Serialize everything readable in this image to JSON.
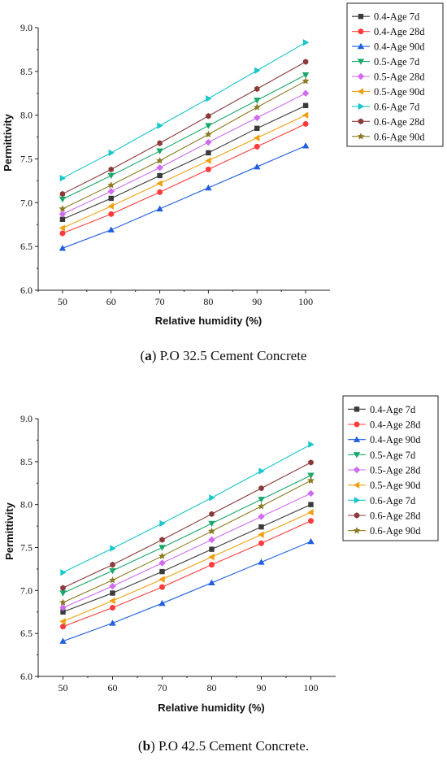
{
  "series_styles": [
    {
      "name": "0.4-Age 7d",
      "color": "#3a3a3a",
      "marker": "square"
    },
    {
      "name": "0.4-Age 28d",
      "color": "#ff3b3b",
      "marker": "circle"
    },
    {
      "name": "0.4-Age 90d",
      "color": "#1f5fe0",
      "marker": "triangle-up"
    },
    {
      "name": "0.5-Age 7d",
      "color": "#18a86a",
      "marker": "triangle-down"
    },
    {
      "name": "0.5-Age 28d",
      "color": "#d06bf0",
      "marker": "diamond"
    },
    {
      "name": "0.5-Age 90d",
      "color": "#f0a010",
      "marker": "triangle-left"
    },
    {
      "name": "0.6-Age 7d",
      "color": "#19c6cc",
      "marker": "triangle-right"
    },
    {
      "name": "0.6-Age 28d",
      "color": "#8b3a3a",
      "marker": "hexagon"
    },
    {
      "name": "0.6-Age 90d",
      "color": "#8a7a20",
      "marker": "star"
    }
  ],
  "chart_data": [
    {
      "type": "line",
      "xlabel": "Relative humidity (%)",
      "ylabel": "Permittivity",
      "xlim": [
        45,
        105
      ],
      "ylim": [
        6.0,
        9.0
      ],
      "x": [
        50,
        60,
        70,
        80,
        90,
        100
      ],
      "x_ticks": [
        "50",
        "60",
        "70",
        "80",
        "90",
        "100"
      ],
      "y_ticks": [
        "6.0",
        "6.5",
        "7.0",
        "7.5",
        "8.0",
        "8.5",
        "9.0"
      ],
      "legend_position": "top-right",
      "series": [
        {
          "name": "0.4-Age 7d",
          "values": [
            6.81,
            7.05,
            7.31,
            7.57,
            7.85,
            8.11
          ]
        },
        {
          "name": "0.4-Age 28d",
          "values": [
            6.65,
            6.87,
            7.12,
            7.38,
            7.64,
            7.9
          ]
        },
        {
          "name": "0.4-Age 90d",
          "values": [
            6.48,
            6.69,
            6.93,
            7.17,
            7.41,
            7.65
          ]
        },
        {
          "name": "0.5-Age 7d",
          "values": [
            7.04,
            7.31,
            7.59,
            7.88,
            8.17,
            8.46
          ]
        },
        {
          "name": "0.5-Age 28d",
          "values": [
            6.87,
            7.13,
            7.4,
            7.69,
            7.97,
            8.25
          ]
        },
        {
          "name": "0.5-Age 90d",
          "values": [
            6.71,
            6.96,
            7.22,
            7.48,
            7.74,
            8.0
          ]
        },
        {
          "name": "0.6-Age 7d",
          "values": [
            7.28,
            7.57,
            7.88,
            8.19,
            8.51,
            8.83
          ]
        },
        {
          "name": "0.6-Age 28d",
          "values": [
            7.1,
            7.38,
            7.68,
            7.99,
            8.3,
            8.61
          ]
        },
        {
          "name": "0.6-Age 90d",
          "values": [
            6.93,
            7.2,
            7.48,
            7.78,
            8.09,
            8.39
          ]
        }
      ]
    },
    {
      "type": "line",
      "xlabel": "Relative humidity (%)",
      "ylabel": "Permittivity",
      "xlim": [
        45,
        105
      ],
      "ylim": [
        6.0,
        9.0
      ],
      "x": [
        50,
        60,
        70,
        80,
        90,
        100
      ],
      "x_ticks": [
        "50",
        "60",
        "70",
        "80",
        "90",
        "100"
      ],
      "y_ticks": [
        "6.0",
        "6.5",
        "7.0",
        "7.5",
        "8.0",
        "8.5",
        "9.0"
      ],
      "legend_position": "top-right",
      "series": [
        {
          "name": "0.4-Age 7d",
          "values": [
            6.75,
            6.97,
            7.22,
            7.48,
            7.74,
            8.0
          ]
        },
        {
          "name": "0.4-Age 28d",
          "values": [
            6.58,
            6.8,
            7.04,
            7.3,
            7.55,
            7.81
          ]
        },
        {
          "name": "0.4-Age 90d",
          "values": [
            6.41,
            6.62,
            6.85,
            7.09,
            7.33,
            7.57
          ]
        },
        {
          "name": "0.5-Age 7d",
          "values": [
            6.97,
            7.23,
            7.5,
            7.78,
            8.06,
            8.34
          ]
        },
        {
          "name": "0.5-Age 28d",
          "values": [
            6.8,
            7.05,
            7.32,
            7.59,
            7.86,
            8.13
          ]
        },
        {
          "name": "0.5-Age 90d",
          "values": [
            6.64,
            6.88,
            7.13,
            7.39,
            7.65,
            7.91
          ]
        },
        {
          "name": "0.6-Age 7d",
          "values": [
            7.21,
            7.49,
            7.78,
            8.08,
            8.39,
            8.7
          ]
        },
        {
          "name": "0.6-Age 28d",
          "values": [
            7.03,
            7.3,
            7.59,
            7.89,
            8.19,
            8.49
          ]
        },
        {
          "name": "0.6-Age 90d",
          "values": [
            6.86,
            7.12,
            7.4,
            7.69,
            7.98,
            8.28
          ]
        }
      ]
    }
  ],
  "captions": [
    {
      "label": "(a)",
      "letter": "a",
      "text": " P.O 32.5 Cement Concrete"
    },
    {
      "label": "(b)",
      "letter": "b",
      "text": " P.O 42.5 Cement Concrete."
    }
  ]
}
